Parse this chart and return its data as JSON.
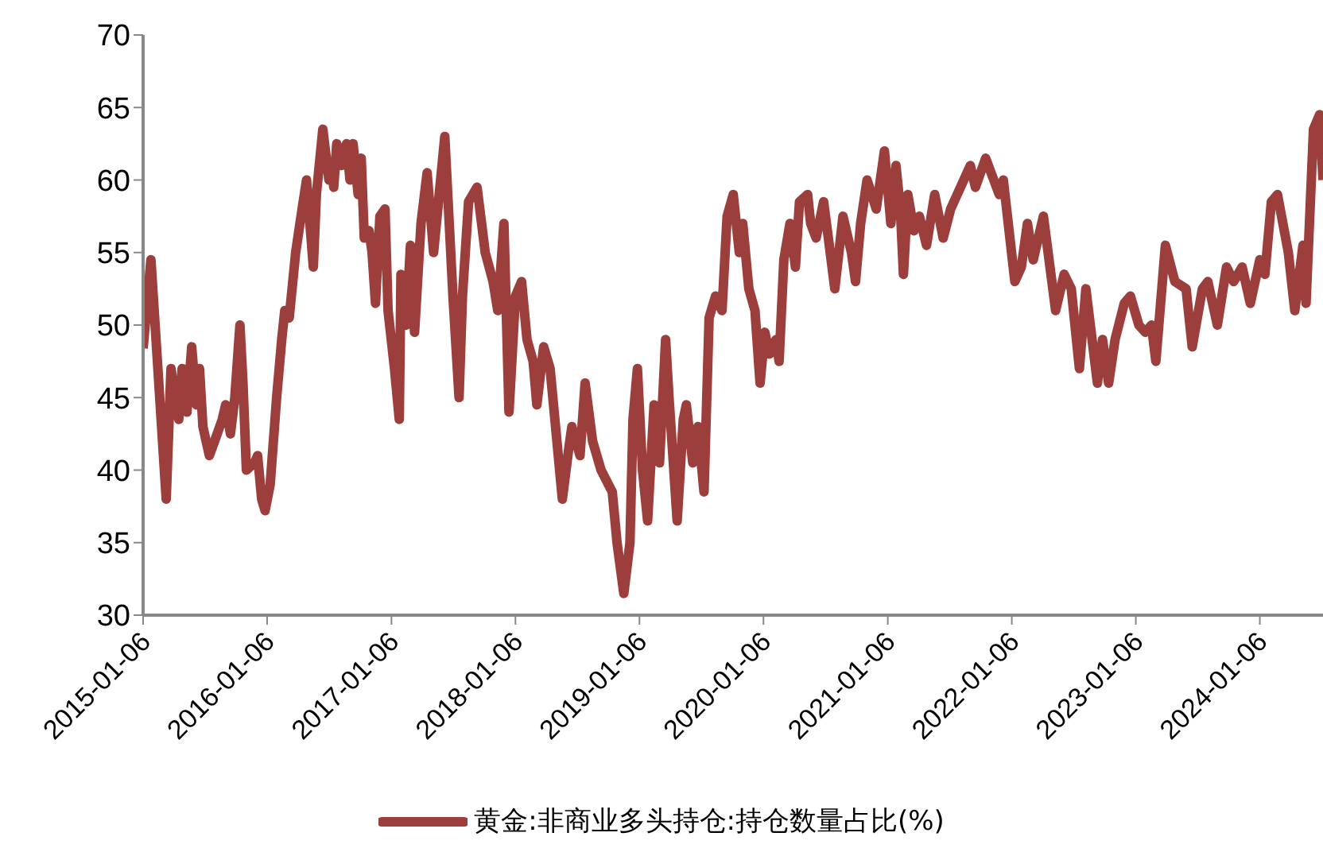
{
  "chart_data": {
    "type": "line",
    "legend": "bottom",
    "grid": false,
    "marker": "none",
    "line_style": "solid",
    "ylim": [
      30,
      70
    ],
    "yticks": [
      30,
      35,
      40,
      45,
      50,
      55,
      60,
      65,
      70
    ],
    "xlim": [
      "2015-01-06",
      "2024-07-10"
    ],
    "xticks": [
      "2015-01-06",
      "2016-01-06",
      "2017-01-06",
      "2018-01-06",
      "2019-01-06",
      "2020-01-06",
      "2021-01-06",
      "2022-01-06",
      "2023-01-06",
      "2024-01-06"
    ],
    "x": [
      "2015-01-06",
      "2015-01-29",
      "2015-03-15",
      "2015-03-29",
      "2015-04-21",
      "2015-05-01",
      "2015-05-15",
      "2015-05-29",
      "2015-06-12",
      "2015-06-21",
      "2015-07-01",
      "2015-07-20",
      "2015-08-12",
      "2015-08-27",
      "2015-09-06",
      "2015-09-20",
      "2015-10-03",
      "2015-10-18",
      "2015-10-27",
      "2015-11-06",
      "2015-11-30",
      "2015-12-09",
      "2015-12-21",
      "2015-12-31",
      "2016-01-15",
      "2016-02-03",
      "2016-02-18",
      "2016-02-27",
      "2016-03-11",
      "2016-03-30",
      "2016-04-18",
      "2016-05-01",
      "2016-05-21",
      "2016-05-30",
      "2016-06-18",
      "2016-07-06",
      "2016-07-15",
      "2016-07-20",
      "2016-07-29",
      "2016-08-12",
      "2016-08-27",
      "2016-09-06",
      "2016-09-15",
      "2016-09-30",
      "2016-10-09",
      "2016-10-18",
      "2016-11-01",
      "2016-11-10",
      "2016-11-20",
      "2016-12-03",
      "2016-12-18",
      "2016-12-27",
      "2017-01-15",
      "2017-01-29",
      "2017-02-03",
      "2017-02-18",
      "2017-03-03",
      "2017-03-15",
      "2017-04-03",
      "2017-04-21",
      "2017-05-10",
      "2017-06-12",
      "2017-07-06",
      "2017-07-24",
      "2017-08-03",
      "2017-08-21",
      "2017-09-15",
      "2017-10-09",
      "2017-11-01",
      "2017-11-15",
      "2017-12-03",
      "2017-12-18",
      "2018-01-06",
      "2018-01-24",
      "2018-02-09",
      "2018-02-27",
      "2018-03-10",
      "2018-03-30",
      "2018-04-18",
      "2018-05-24",
      "2018-06-12",
      "2018-06-21",
      "2018-07-15",
      "2018-07-30",
      "2018-08-21",
      "2018-09-15",
      "2018-10-18",
      "2018-11-01",
      "2018-11-21",
      "2018-12-09",
      "2018-12-18",
      "2018-12-31",
      "2019-01-15",
      "2019-01-30",
      "2019-02-18",
      "2019-03-06",
      "2019-03-24",
      "2019-04-03",
      "2019-04-27",
      "2019-05-15",
      "2019-05-24",
      "2019-06-12",
      "2019-06-27",
      "2019-07-15",
      "2019-07-30",
      "2019-08-18",
      "2019-09-06",
      "2019-09-21",
      "2019-10-09",
      "2019-10-27",
      "2019-11-06",
      "2019-11-24",
      "2019-12-12",
      "2019-12-27",
      "2020-01-10",
      "2020-01-24",
      "2020-02-12",
      "2020-02-21",
      "2020-03-06",
      "2020-03-24",
      "2020-04-09",
      "2020-04-21",
      "2020-05-15",
      "2020-05-24",
      "2020-06-09",
      "2020-07-01",
      "2020-07-15",
      "2020-08-03",
      "2020-08-27",
      "2020-09-21",
      "2020-10-03",
      "2020-10-18",
      "2020-11-06",
      "2020-12-03",
      "2020-12-27",
      "2021-01-15",
      "2021-01-30",
      "2021-02-12",
      "2021-02-21",
      "2021-03-06",
      "2021-03-24",
      "2021-04-09",
      "2021-04-30",
      "2021-05-24",
      "2021-06-18",
      "2021-07-10",
      "2021-09-06",
      "2021-09-21",
      "2021-10-21",
      "2021-11-30",
      "2021-12-12",
      "2022-01-15",
      "2022-02-03",
      "2022-02-21",
      "2022-03-10",
      "2022-04-09",
      "2022-05-15",
      "2022-06-09",
      "2022-06-30",
      "2022-07-24",
      "2022-08-12",
      "2022-09-15",
      "2022-09-30",
      "2022-10-18",
      "2022-11-06",
      "2022-12-03",
      "2022-12-21",
      "2023-01-15",
      "2023-02-03",
      "2023-02-21",
      "2023-03-06",
      "2023-04-03",
      "2023-05-01",
      "2023-06-03",
      "2023-06-21",
      "2023-07-21",
      "2023-08-06",
      "2023-09-03",
      "2023-09-30",
      "2023-10-21",
      "2023-11-15",
      "2023-12-09",
      "2024-01-06",
      "2024-01-21",
      "2024-02-09",
      "2024-02-27",
      "2024-03-30",
      "2024-04-18",
      "2024-05-12",
      "2024-05-21",
      "2024-06-12",
      "2024-06-30",
      "2024-07-10"
    ],
    "series": [
      {
        "name": "黄金:非商业多头持仓:持仓数量占比(%)",
        "color": "#9c3f3c",
        "values": [
          48.4,
          54.5,
          38,
          47,
          43.5,
          47,
          44,
          48.5,
          44.5,
          47,
          43,
          41,
          42.5,
          43.5,
          44.5,
          42.5,
          45,
          50,
          46,
          40,
          40.5,
          41,
          38,
          37.2,
          39,
          45,
          49,
          51,
          50.5,
          55,
          58,
          60,
          54,
          59,
          63.5,
          60,
          61,
          59.5,
          62.5,
          61,
          62.5,
          60,
          62.5,
          59,
          61.5,
          56,
          56.5,
          55,
          51.5,
          57.5,
          58,
          51,
          47,
          43.5,
          53.5,
          50,
          55.5,
          49.5,
          57,
          60.5,
          55,
          63,
          52,
          45,
          52,
          58.5,
          59.5,
          55,
          53,
          51,
          57,
          44,
          52,
          53,
          49,
          47.5,
          44.5,
          48.5,
          47,
          38,
          41.5,
          43,
          41,
          46,
          42,
          40,
          38.5,
          35,
          31.5,
          35,
          43.5,
          47,
          40,
          36.5,
          44.5,
          40.5,
          49,
          45,
          36.5,
          43.5,
          44.5,
          40.5,
          43,
          38.5,
          50.5,
          52,
          51,
          57.5,
          59,
          55,
          57,
          52.5,
          51,
          46,
          49.5,
          48,
          49,
          47.5,
          54.5,
          57,
          54,
          58.5,
          59,
          57,
          56,
          58.5,
          56,
          52.5,
          57.5,
          55,
          53,
          57,
          60,
          58,
          62,
          57,
          61,
          58,
          53.5,
          59,
          56.5,
          57.5,
          55.5,
          59,
          56,
          58,
          61,
          59.5,
          61.5,
          59,
          60,
          53,
          54,
          57,
          54.5,
          57.5,
          51,
          53.5,
          52.5,
          47,
          52.5,
          46,
          49,
          46,
          49,
          51.5,
          52,
          50,
          49.5,
          50,
          47.5,
          55.5,
          53,
          52.5,
          48.5,
          52.5,
          53,
          50,
          54,
          53,
          54,
          51.5,
          54.5,
          53.5,
          58.5,
          59,
          55,
          51,
          55.5,
          51.5,
          63.5,
          64.5,
          60
        ]
      }
    ]
  }
}
